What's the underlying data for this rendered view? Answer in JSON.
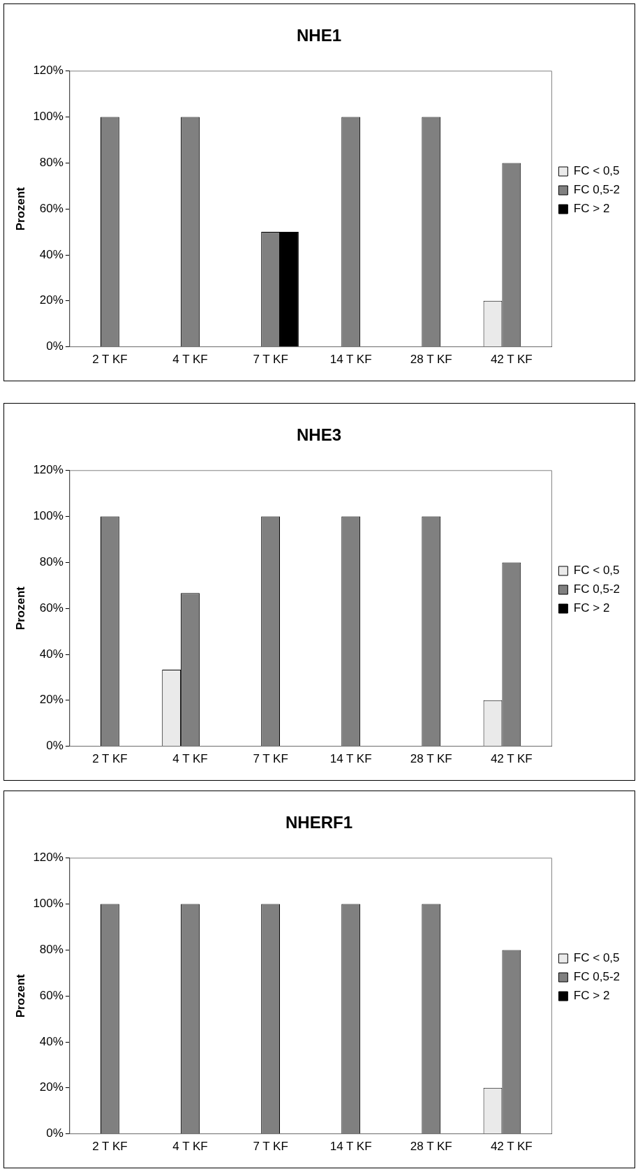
{
  "chart_data": [
    {
      "type": "bar",
      "title": "NHE1",
      "ylabel": "Prozent",
      "categories": [
        "2 T KF",
        "4 T KF",
        "7 T KF",
        "14 T KF",
        "28 T KF",
        "42 T KF"
      ],
      "series": [
        {
          "name": "FC < 0,5",
          "color": "#eaeaea",
          "values": [
            0,
            0,
            0,
            0,
            0,
            20
          ]
        },
        {
          "name": "FC 0,5-2",
          "color": "#808080",
          "values": [
            100,
            100,
            50,
            100,
            100,
            80
          ]
        },
        {
          "name": "FC > 2",
          "color": "#000000",
          "values": [
            0,
            0,
            50,
            0,
            0,
            0
          ]
        }
      ],
      "ylim": [
        0,
        120
      ],
      "yticks": [
        {
          "value": 0,
          "label": "0%"
        },
        {
          "value": 20,
          "label": "20%"
        },
        {
          "value": 40,
          "label": "40%"
        },
        {
          "value": 60,
          "label": "60%"
        },
        {
          "value": 80,
          "label": "80%"
        },
        {
          "value": 100,
          "label": "100%"
        },
        {
          "value": 120,
          "label": "120%"
        }
      ],
      "grid": false,
      "legend": "right"
    },
    {
      "type": "bar",
      "title": "NHE3",
      "ylabel": "Prozent",
      "categories": [
        "2 T KF",
        "4 T KF",
        "7 T KF",
        "14 T KF",
        "28 T KF",
        "42 T KF"
      ],
      "series": [
        {
          "name": "FC < 0,5",
          "color": "#eaeaea",
          "values": [
            0,
            33.3,
            0,
            0,
            0,
            20
          ]
        },
        {
          "name": "FC 0,5-2",
          "color": "#808080",
          "values": [
            100,
            66.7,
            100,
            100,
            100,
            80
          ]
        },
        {
          "name": "FC > 2",
          "color": "#000000",
          "values": [
            0,
            0,
            0,
            0,
            0,
            0
          ]
        }
      ],
      "ylim": [
        0,
        120
      ],
      "yticks": [
        {
          "value": 0,
          "label": "0%"
        },
        {
          "value": 20,
          "label": "20%"
        },
        {
          "value": 40,
          "label": "40%"
        },
        {
          "value": 60,
          "label": "60%"
        },
        {
          "value": 80,
          "label": "80%"
        },
        {
          "value": 100,
          "label": "100%"
        },
        {
          "value": 120,
          "label": "120%"
        }
      ],
      "grid": false,
      "legend": "right"
    },
    {
      "type": "bar",
      "title": "NHERF1",
      "ylabel": "Prozent",
      "categories": [
        "2 T KF",
        "4 T KF",
        "7 T KF",
        "14 T KF",
        "28 T KF",
        "42 T KF"
      ],
      "series": [
        {
          "name": "FC < 0,5",
          "color": "#eaeaea",
          "values": [
            0,
            0,
            0,
            0,
            0,
            20
          ]
        },
        {
          "name": "FC 0,5-2",
          "color": "#808080",
          "values": [
            100,
            100,
            100,
            100,
            100,
            80
          ]
        },
        {
          "name": "FC > 2",
          "color": "#000000",
          "values": [
            0,
            0,
            0,
            0,
            0,
            0
          ]
        }
      ],
      "ylim": [
        0,
        120
      ],
      "yticks": [
        {
          "value": 0,
          "label": "0%"
        },
        {
          "value": 20,
          "label": "20%"
        },
        {
          "value": 40,
          "label": "40%"
        },
        {
          "value": 60,
          "label": "60%"
        },
        {
          "value": 80,
          "label": "80%"
        },
        {
          "value": 100,
          "label": "100%"
        },
        {
          "value": 120,
          "label": "120%"
        }
      ],
      "grid": false,
      "legend": "right"
    }
  ]
}
